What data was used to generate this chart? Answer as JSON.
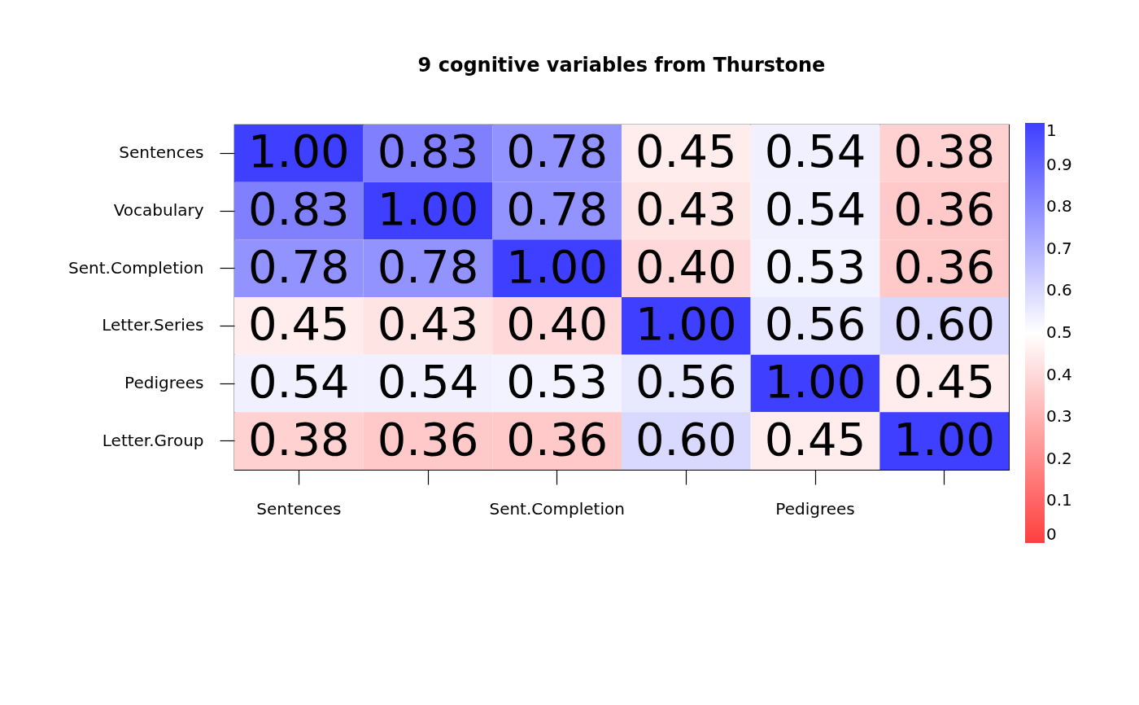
{
  "chart_data": {
    "type": "heatmap",
    "title": "9 cognitive variables from Thurstone",
    "categories": [
      "Sentences",
      null,
      "Sent.Completion",
      null,
      "Pedigrees",
      null
    ],
    "y_categories": [
      "Sentences",
      "Vocabulary",
      "Sent.Completion",
      "Letter.Series",
      "Pedigrees",
      "Letter.Group"
    ],
    "cells": [
      [
        1.0,
        0.83,
        0.78,
        0.45,
        0.54,
        0.38
      ],
      [
        0.83,
        1.0,
        0.78,
        0.43,
        0.54,
        0.36
      ],
      [
        0.78,
        0.78,
        1.0,
        0.4,
        0.53,
        0.36
      ],
      [
        0.45,
        0.43,
        0.4,
        1.0,
        0.56,
        0.6
      ],
      [
        0.54,
        0.54,
        0.53,
        0.56,
        1.0,
        0.45
      ],
      [
        0.38,
        0.36,
        0.36,
        0.6,
        0.45,
        1.0
      ]
    ],
    "cell_labels": [
      [
        "1.00",
        "0.83",
        "0.78",
        "0.45",
        "0.54",
        "0.38"
      ],
      [
        "0.83",
        "1.00",
        "0.78",
        "0.43",
        "0.54",
        "0.36"
      ],
      [
        "0.78",
        "0.78",
        "1.00",
        "0.40",
        "0.53",
        "0.36"
      ],
      [
        "0.45",
        "0.43",
        "0.40",
        "1.00",
        "0.56",
        "0.60"
      ],
      [
        "0.54",
        "0.54",
        "0.53",
        "0.56",
        "1.00",
        "0.45"
      ],
      [
        "0.38",
        "0.36",
        "0.36",
        "0.60",
        "0.45",
        "1.00"
      ]
    ],
    "clim": [
      0,
      1
    ],
    "cticks": [
      0,
      0.1,
      0.2,
      0.3,
      0.4,
      0.5,
      0.6,
      0.7,
      0.8,
      0.9,
      1
    ]
  }
}
